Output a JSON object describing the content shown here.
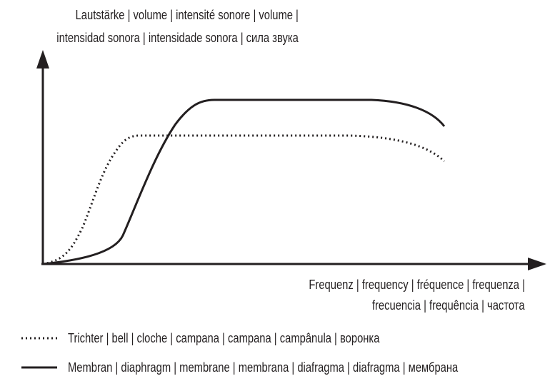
{
  "y_axis_label": {
    "line1": "Lautstärke | volume | intensité sonore | volume |",
    "line2": "intensidad sonora | intensidade sonora | сила звука"
  },
  "x_axis_label": {
    "line1": "Frequenz |  frequency | fréquence | frequenza |",
    "line2": "frecuencia | frequência | частота"
  },
  "legend": [
    {
      "style": "dotted",
      "label": "Trichter |  bell | cloche | campana | campana | campânula | воронка"
    },
    {
      "style": "solid",
      "label": "Membran | diaphragm | membrane | membrana | diafragma | diafragma | мембрана"
    }
  ],
  "colors": {
    "ink": "#231f20",
    "background": "#ffffff"
  }
}
